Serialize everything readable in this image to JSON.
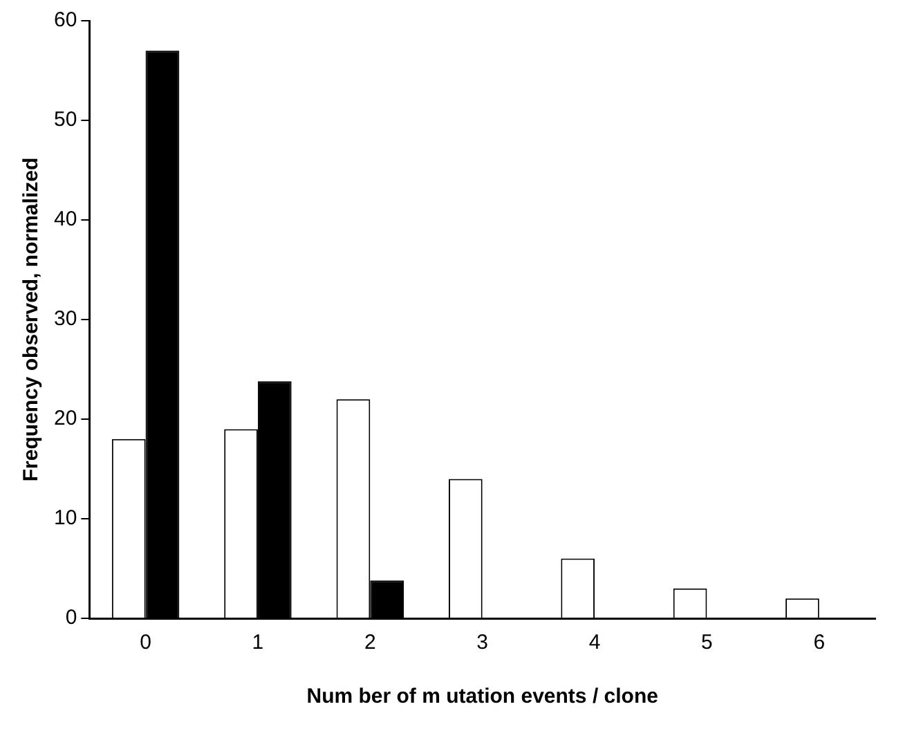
{
  "chart_data": {
    "type": "bar",
    "xlabel": "Num ber of m utation events / clone",
    "ylabel": "Frequency observed, normalized",
    "categories": [
      "0",
      "1",
      "2",
      "3",
      "4",
      "5",
      "6"
    ],
    "series": [
      {
        "color": "#ffffff",
        "values": [
          18,
          19,
          22,
          14,
          6,
          3,
          2
        ]
      },
      {
        "color": "#000000",
        "values": [
          57,
          23.8,
          3.8,
          0,
          0,
          0,
          0
        ]
      }
    ],
    "ylim": [
      0,
      60
    ],
    "yticks": [
      0,
      10,
      20,
      30,
      40,
      50,
      60
    ],
    "grid": false,
    "legend": false
  }
}
